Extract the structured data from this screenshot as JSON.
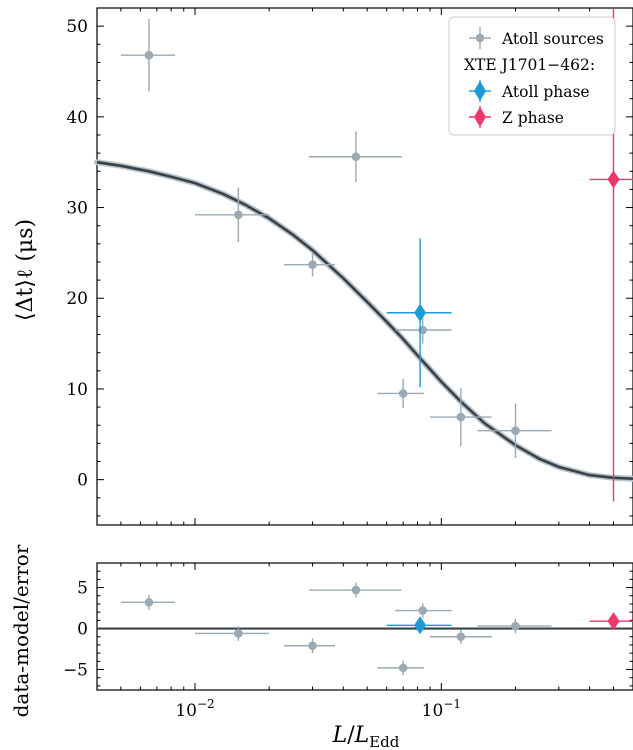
{
  "chart_data": [
    {
      "type": "scatter",
      "panel": "main",
      "ylabel": "⟨Δt⟩ℓ (μs)",
      "xlabel": "",
      "xscale": "log",
      "xlim": [
        0.004,
        0.6
      ],
      "ylim": [
        -5,
        52
      ],
      "yticks": [
        0,
        10,
        20,
        30,
        40,
        50
      ],
      "ytick_labels": [
        "0",
        "10",
        "20",
        "30",
        "40",
        "50"
      ],
      "grid": false,
      "legend": {
        "placement": "top-right",
        "entries": [
          {
            "label": "Atoll sources",
            "marker": "circle",
            "color": "#9aa9b3"
          },
          {
            "label": "XTE J1701−462:",
            "marker": "none",
            "color": "#000000"
          },
          {
            "label": "Atoll phase",
            "marker": "diamond",
            "color": "#1a9bd7"
          },
          {
            "label": "Z phase",
            "marker": "diamond",
            "color": "#f03668"
          }
        ]
      },
      "series": [
        {
          "name": "Atoll sources",
          "color": "#9aa9b3",
          "marker": "circle",
          "points": [
            {
              "x": 0.0065,
              "y": 46.8,
              "xerr": [
                0.0015,
                0.0018
              ],
              "yerr": [
                4.0,
                4.0
              ]
            },
            {
              "x": 0.015,
              "y": 29.2,
              "xerr": [
                0.005,
                0.005
              ],
              "yerr": [
                3.0,
                3.0
              ]
            },
            {
              "x": 0.03,
              "y": 23.7,
              "xerr": [
                0.007,
                0.007
              ],
              "yerr": [
                1.3,
                1.3
              ]
            },
            {
              "x": 0.045,
              "y": 35.6,
              "xerr": [
                0.016,
                0.024
              ],
              "yerr": [
                2.8,
                2.8
              ]
            },
            {
              "x": 0.07,
              "y": 9.5,
              "xerr": [
                0.015,
                0.015
              ],
              "yerr": [
                1.6,
                1.6
              ]
            },
            {
              "x": 0.084,
              "y": 16.5,
              "xerr": [
                0.019,
                0.026
              ],
              "yerr": [
                1.5,
                1.5
              ]
            },
            {
              "x": 0.12,
              "y": 6.9,
              "xerr": [
                0.03,
                0.04
              ],
              "yerr": [
                3.2,
                3.2
              ]
            },
            {
              "x": 0.2,
              "y": 5.4,
              "xerr": [
                0.06,
                0.08
              ],
              "yerr": [
                3.0,
                3.0
              ]
            }
          ]
        },
        {
          "name": "Atoll phase",
          "color": "#1a9bd7",
          "marker": "diamond",
          "points": [
            {
              "x": 0.082,
              "y": 18.4,
              "xerr": [
                0.022,
                0.028
              ],
              "yerr": [
                8.2,
                8.2
              ]
            }
          ]
        },
        {
          "name": "Z phase",
          "color": "#f03668",
          "marker": "diamond",
          "points": [
            {
              "x": 0.5,
              "y": 33.1,
              "xerr": [
                0.1,
                0.1
              ],
              "yerr": [
                35.5,
                35.5
              ]
            }
          ]
        }
      ],
      "model_curve": {
        "color": "#3a4046",
        "band_color": "#b7c4cc",
        "points": [
          [
            0.004,
            35.0
          ],
          [
            0.005,
            34.6
          ],
          [
            0.0065,
            34.0
          ],
          [
            0.008,
            33.4
          ],
          [
            0.01,
            32.7
          ],
          [
            0.013,
            31.5
          ],
          [
            0.016,
            30.3
          ],
          [
            0.02,
            28.8
          ],
          [
            0.025,
            27.0
          ],
          [
            0.03,
            25.3
          ],
          [
            0.04,
            22.2
          ],
          [
            0.05,
            19.6
          ],
          [
            0.06,
            17.4
          ],
          [
            0.07,
            15.5
          ],
          [
            0.08,
            13.7
          ],
          [
            0.1,
            10.8
          ],
          [
            0.12,
            8.6
          ],
          [
            0.15,
            6.2
          ],
          [
            0.2,
            3.8
          ],
          [
            0.25,
            2.3
          ],
          [
            0.3,
            1.4
          ],
          [
            0.4,
            0.5
          ],
          [
            0.5,
            0.2
          ],
          [
            0.6,
            0.1
          ]
        ]
      }
    },
    {
      "type": "scatter",
      "panel": "residuals",
      "ylabel": "data-model/error",
      "xlabel": "L/L_Edd",
      "xscale": "log",
      "xlim": [
        0.004,
        0.6
      ],
      "ylim": [
        -7.5,
        8
      ],
      "yticks": [
        -5,
        0,
        5
      ],
      "ytick_labels": [
        "−5",
        "0",
        "5"
      ],
      "xticks": [
        0.01,
        0.1
      ],
      "xtick_labels": [
        "10",
        "10"
      ],
      "xtick_exponents": [
        "−2",
        "−1"
      ],
      "grid": false,
      "zero_line": 0,
      "series": [
        {
          "name": "Atoll sources",
          "color": "#9aa9b3",
          "marker": "circle",
          "points": [
            {
              "x": 0.0065,
              "y": 3.2,
              "xerr": [
                0.0015,
                0.0018
              ],
              "yerr": [
                0.9,
                0.9
              ]
            },
            {
              "x": 0.015,
              "y": -0.6,
              "xerr": [
                0.005,
                0.005
              ],
              "yerr": [
                0.9,
                0.9
              ]
            },
            {
              "x": 0.03,
              "y": -2.1,
              "xerr": [
                0.007,
                0.007
              ],
              "yerr": [
                0.9,
                0.9
              ]
            },
            {
              "x": 0.045,
              "y": 4.7,
              "xerr": [
                0.016,
                0.024
              ],
              "yerr": [
                0.9,
                0.9
              ]
            },
            {
              "x": 0.07,
              "y": -4.8,
              "xerr": [
                0.015,
                0.015
              ],
              "yerr": [
                0.9,
                0.9
              ]
            },
            {
              "x": 0.084,
              "y": 2.2,
              "xerr": [
                0.019,
                0.026
              ],
              "yerr": [
                0.9,
                0.9
              ]
            },
            {
              "x": 0.12,
              "y": -1.0,
              "xerr": [
                0.03,
                0.04
              ],
              "yerr": [
                0.9,
                0.9
              ]
            },
            {
              "x": 0.2,
              "y": 0.3,
              "xerr": [
                0.06,
                0.08
              ],
              "yerr": [
                0.9,
                0.9
              ]
            }
          ]
        },
        {
          "name": "Atoll phase",
          "color": "#1a9bd7",
          "marker": "diamond",
          "points": [
            {
              "x": 0.082,
              "y": 0.4,
              "xerr": [
                0.022,
                0.028
              ],
              "yerr": [
                0.9,
                0.9
              ]
            }
          ]
        },
        {
          "name": "Z phase",
          "color": "#f03668",
          "marker": "diamond",
          "points": [
            {
              "x": 0.5,
              "y": 0.9,
              "xerr": [
                0.1,
                0.1
              ],
              "yerr": [
                0.3,
                0.3
              ]
            }
          ]
        }
      ]
    }
  ]
}
